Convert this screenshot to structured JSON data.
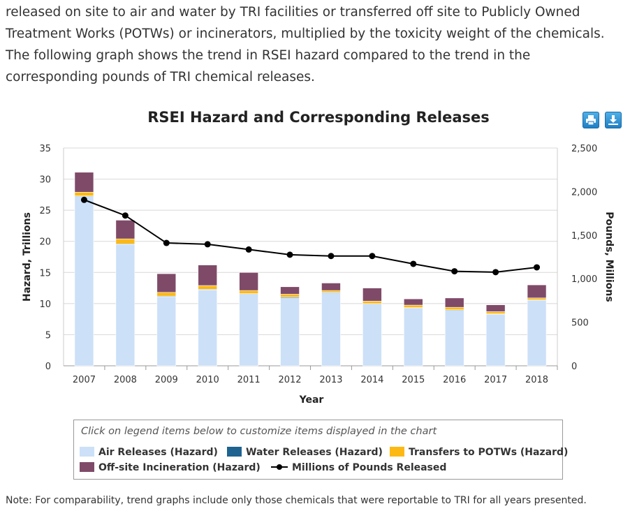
{
  "intro_text": "released on site to air and water by TRI facilities or transferred off site to Publicly Owned Treatment Works (POTWs) or incinerators, multiplied by the toxicity weight of the chemicals. The following graph shows the trend in RSEI hazard compared to the trend in the corresponding pounds of TRI chemical releases.",
  "toolbar": {
    "print_icon": "print-icon",
    "download_icon": "download-icon",
    "accent": "#2a8ad0"
  },
  "legend": {
    "instruction": "Click on legend items below to customize items displayed in the chart",
    "items": [
      {
        "label": "Air Releases (Hazard)",
        "color": "#cce0f8"
      },
      {
        "label": "Water Releases (Hazard)",
        "color": "#1f6390"
      },
      {
        "label": "Transfers to POTWs (Hazard)",
        "color": "#fdb913"
      },
      {
        "label": "Off-site Incineration (Hazard)",
        "color": "#7f4a68"
      },
      {
        "label": "Millions of Pounds Released",
        "color": "#000000"
      }
    ]
  },
  "note": "Note: For comparability, trend graphs include only those chemicals that were reportable to TRI for all years presented.",
  "chart_data": {
    "type": "bar",
    "stacked": true,
    "title": "RSEI Hazard and Corresponding Releases",
    "xlabel": "Year",
    "ylabel": "Hazard, Trillions",
    "y2label": "Pounds, Millions",
    "ylim": [
      0,
      35
    ],
    "y2lim": [
      0,
      2500
    ],
    "yticks": [
      "0",
      "5",
      "10",
      "15",
      "20",
      "25",
      "30",
      "35"
    ],
    "y2ticks": [
      "0",
      "500",
      "1,000",
      "1,500",
      "2,000",
      "2,500"
    ],
    "grid": true,
    "categories": [
      "2007",
      "2008",
      "2009",
      "2010",
      "2011",
      "2012",
      "2013",
      "2014",
      "2015",
      "2016",
      "2017",
      "2018"
    ],
    "series": [
      {
        "name": "Air Releases (Hazard)",
        "color": "#cce0f8",
        "axis": "left",
        "values": [
          27.2,
          19.5,
          11.1,
          12.2,
          11.5,
          10.9,
          11.7,
          9.9,
          9.3,
          8.9,
          8.3,
          10.5
        ]
      },
      {
        "name": "Water Releases (Hazard)",
        "color": "#1f6390",
        "axis": "left",
        "values": [
          0.1,
          0.1,
          0.1,
          0.1,
          0.1,
          0.15,
          0.1,
          0.1,
          0.05,
          0.1,
          0.05,
          0.1
        ]
      },
      {
        "name": "Transfers to POTWs (Hazard)",
        "color": "#fdb913",
        "axis": "left",
        "values": [
          0.6,
          0.8,
          0.6,
          0.6,
          0.5,
          0.45,
          0.3,
          0.4,
          0.4,
          0.4,
          0.35,
          0.3
        ]
      },
      {
        "name": "Off-site Incineration (Hazard)",
        "color": "#7f4a68",
        "axis": "left",
        "values": [
          3.2,
          3.0,
          3.0,
          3.3,
          2.9,
          1.2,
          1.2,
          2.1,
          1.0,
          1.5,
          1.1,
          2.1
        ]
      },
      {
        "name": "Millions of Pounds Released",
        "color": "#000000",
        "axis": "right",
        "type": "line",
        "values": [
          1905,
          1725,
          1410,
          1395,
          1335,
          1275,
          1260,
          1260,
          1170,
          1085,
          1075,
          1130
        ]
      }
    ]
  }
}
